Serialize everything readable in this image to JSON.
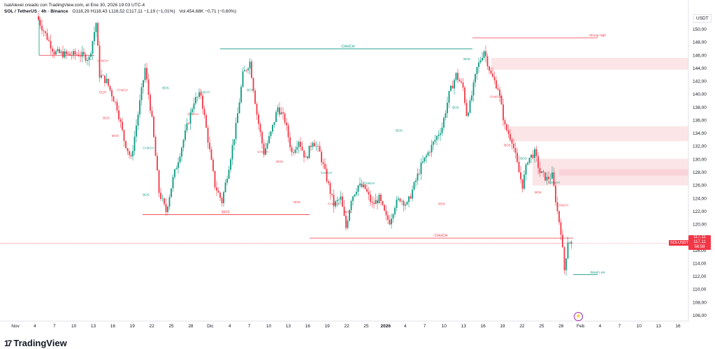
{
  "header": {
    "line1": "IsalAlexei creado con TradingView.com, el Ene 30, 2026 19:03 UTC-4",
    "symbol": "SOL / TetherUS · 4h · Binance",
    "ohlc": "O118,29 H118,43 L116,52 C117,11 −1,19 (−1,01%)",
    "volume": "Vol.454,68K −0,71 (−0,60%)"
  },
  "brand": {
    "name": "TradingView",
    "logo": "17"
  },
  "axis": {
    "currency_label": "USDT",
    "price_ticks": [
      "150,00",
      "148,00",
      "146,00",
      "144,00",
      "142,00",
      "140,00",
      "138,00",
      "136,00",
      "134,00",
      "132,00",
      "130,00",
      "128,00",
      "126,00",
      "124,00",
      "122,00",
      "120,00",
      "118,00",
      "116,00",
      "114,00",
      "112,00",
      "110,00",
      "108,00",
      "106,00"
    ],
    "time_ticks": [
      "Nov",
      "4",
      "7",
      "10",
      "13",
      "16",
      "19",
      "22",
      "25",
      "28",
      "Dic",
      "4",
      "7",
      "10",
      "13",
      "16",
      "19",
      "22",
      "25",
      "2026",
      "4",
      "7",
      "10",
      "13",
      "16",
      "19",
      "22",
      "25",
      "28",
      "Feb",
      "4",
      "7",
      "10",
      "13",
      "16"
    ]
  },
  "last_price": {
    "symbol_tag": "SOLUSDT",
    "price": "117,11",
    "price2": "117,11",
    "countdown": "56:59"
  },
  "annotations": {
    "choch_top": "CHoCH",
    "choch_bottom": "CHoCH",
    "bos_left": "BOS",
    "bos_mid": "BOS",
    "strong_high": "Strong High",
    "weak_low": "Weak Low",
    "small_bos": "BOS",
    "small_choch": "CHoCH",
    "eqh": "EQH"
  },
  "colors": {
    "up": "#089981",
    "down": "#f23645",
    "zone": "#f7c5ca",
    "choch": "#089981",
    "bos": "#f23645"
  },
  "chart_data": {
    "type": "candlestick",
    "title": "SOL / TetherUS · 4h · Binance",
    "ylim": [
      105,
      152
    ],
    "last_close": 117.11,
    "path_points": [
      [
        0,
        160
      ],
      [
        10,
        146.5
      ],
      [
        18,
        146
      ],
      [
        24,
        146.2
      ],
      [
        30,
        145.5
      ],
      [
        34,
        151
      ],
      [
        36,
        143
      ],
      [
        40,
        142
      ],
      [
        46,
        138
      ],
      [
        50,
        133
      ],
      [
        54,
        130
      ],
      [
        58,
        137
      ],
      [
        62,
        144
      ],
      [
        66,
        136
      ],
      [
        70,
        125
      ],
      [
        74,
        122
      ],
      [
        78,
        127
      ],
      [
        82,
        131
      ],
      [
        86,
        135
      ],
      [
        90,
        139
      ],
      [
        94,
        140
      ],
      [
        98,
        133
      ],
      [
        102,
        126
      ],
      [
        106,
        123.5
      ],
      [
        110,
        129
      ],
      [
        114,
        135
      ],
      [
        118,
        143
      ],
      [
        122,
        145
      ],
      [
        126,
        137
      ],
      [
        130,
        131
      ],
      [
        134,
        134
      ],
      [
        138,
        138
      ],
      [
        142,
        136
      ],
      [
        146,
        131
      ],
      [
        150,
        133
      ],
      [
        154,
        130
      ],
      [
        158,
        133
      ],
      [
        162,
        131
      ],
      [
        166,
        127
      ],
      [
        170,
        123
      ],
      [
        174,
        124
      ],
      [
        177,
        119.5
      ],
      [
        180,
        124
      ],
      [
        184,
        126
      ],
      [
        188,
        125.5
      ],
      [
        192,
        123
      ],
      [
        196,
        124
      ],
      [
        200,
        121
      ],
      [
        202,
        120.5
      ],
      [
        205,
        123
      ],
      [
        208,
        124
      ],
      [
        212,
        123
      ],
      [
        216,
        126
      ],
      [
        220,
        129
      ],
      [
        224,
        131
      ],
      [
        228,
        133
      ],
      [
        232,
        135
      ],
      [
        236,
        140
      ],
      [
        240,
        143
      ],
      [
        244,
        141
      ],
      [
        246,
        137
      ],
      [
        248,
        138.5
      ],
      [
        252,
        144
      ],
      [
        256,
        146.8
      ],
      [
        260,
        143
      ],
      [
        264,
        141
      ],
      [
        268,
        135
      ],
      [
        272,
        133
      ],
      [
        276,
        128
      ],
      [
        278,
        126
      ],
      [
        281,
        130
      ],
      [
        285,
        131
      ],
      [
        288,
        128
      ],
      [
        292,
        127
      ],
      [
        295,
        127.5
      ],
      [
        298,
        122
      ],
      [
        300,
        119
      ],
      [
        302,
        113
      ],
      [
        304,
        117.5
      ],
      [
        306,
        117.1
      ]
    ],
    "highs": [
      {
        "label": "Strong High",
        "value": 148.7
      },
      {
        "label": "CHoCH",
        "value": 147.0
      }
    ],
    "lows": [
      {
        "label": "BOS",
        "value": 146.0
      },
      {
        "label": "BOS",
        "value": 121.5
      },
      {
        "label": "CHoCH",
        "value": 117.9
      },
      {
        "label": "Weak Low",
        "value": 112.3
      }
    ],
    "supply_zones": [
      [
        143.8,
        145.6
      ],
      [
        132.8,
        135.1
      ],
      [
        126.0,
        130.1
      ],
      [
        127.5,
        128.5
      ]
    ]
  }
}
